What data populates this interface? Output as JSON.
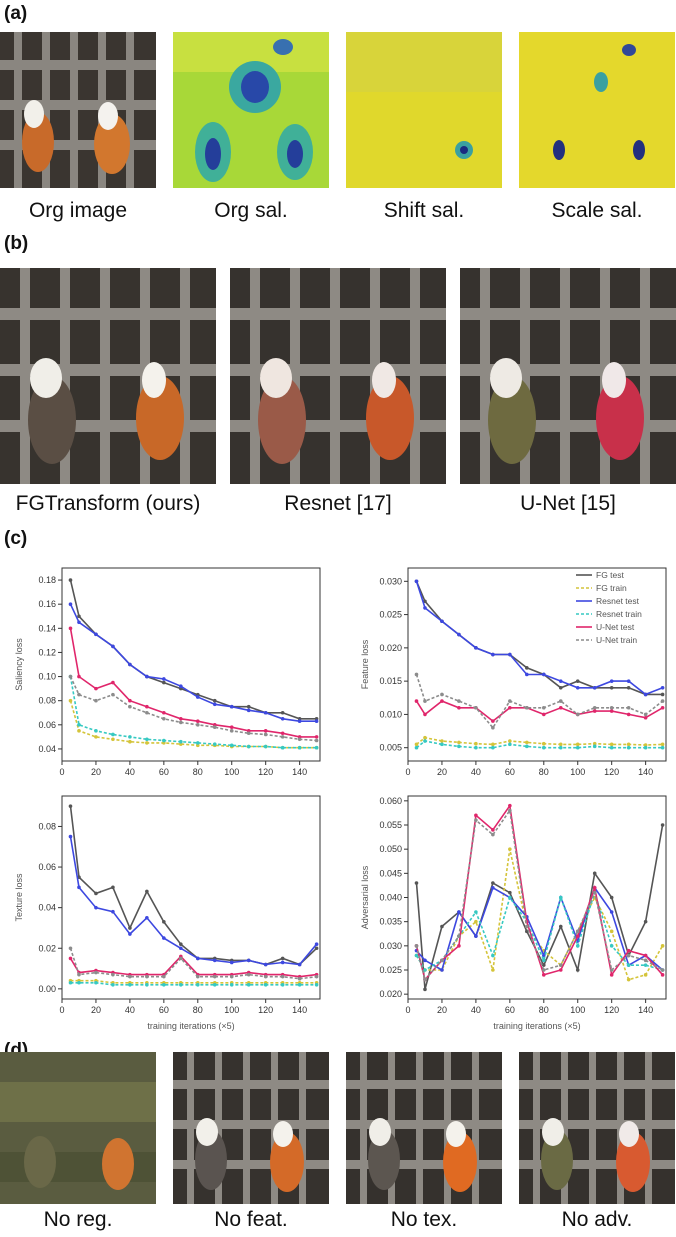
{
  "panels": {
    "a": {
      "label": "(a)",
      "captions": [
        "Org image",
        "Org sal.",
        "Shift sal.",
        "Scale sal."
      ]
    },
    "b": {
      "label": "(b)",
      "captions": [
        "FGTransform (ours)",
        "Resnet [17]",
        "U-Net [15]"
      ]
    },
    "c": {
      "label": "(c)"
    },
    "d": {
      "label": "(d)",
      "captions": [
        "No reg.",
        "No feat.",
        "No tex.",
        "No adv."
      ]
    }
  },
  "colors": {
    "fg_test": "#555555",
    "fg_train": "#d4c43a",
    "resnet_test": "#3d48e0",
    "resnet_train": "#36c9c2",
    "unet_test": "#e0266b",
    "unet_train": "#8c8c8c"
  },
  "chart_data": [
    {
      "type": "line",
      "id": "saliency",
      "ylabel": "Saliency loss",
      "xlabel": "",
      "xticks": [
        0,
        20,
        40,
        60,
        80,
        100,
        120,
        140
      ],
      "yticks": [
        "0.04",
        "0.06",
        "0.08",
        "0.10",
        "0.12",
        "0.14",
        "0.16",
        "0.18"
      ],
      "ylim": [
        0.03,
        0.19
      ],
      "xlim": [
        0,
        152
      ],
      "x": [
        5,
        10,
        20,
        30,
        40,
        50,
        60,
        70,
        80,
        90,
        100,
        110,
        120,
        130,
        140,
        150
      ],
      "series": [
        {
          "key": "fg_test",
          "values": [
            0.18,
            0.15,
            0.135,
            0.125,
            0.11,
            0.1,
            0.095,
            0.09,
            0.085,
            0.08,
            0.075,
            0.075,
            0.07,
            0.07,
            0.065,
            0.065
          ]
        },
        {
          "key": "fg_train",
          "values": [
            0.08,
            0.055,
            0.05,
            0.048,
            0.046,
            0.045,
            0.045,
            0.044,
            0.043,
            0.043,
            0.042,
            0.042,
            0.042,
            0.041,
            0.041,
            0.041
          ]
        },
        {
          "key": "resnet_test",
          "values": [
            0.16,
            0.145,
            0.135,
            0.125,
            0.11,
            0.1,
            0.098,
            0.092,
            0.083,
            0.077,
            0.075,
            0.072,
            0.07,
            0.065,
            0.063,
            0.063
          ]
        },
        {
          "key": "resnet_train",
          "values": [
            0.1,
            0.06,
            0.055,
            0.052,
            0.05,
            0.048,
            0.047,
            0.046,
            0.045,
            0.044,
            0.043,
            0.042,
            0.042,
            0.041,
            0.041,
            0.041
          ]
        },
        {
          "key": "unet_test",
          "values": [
            0.14,
            0.1,
            0.09,
            0.095,
            0.08,
            0.075,
            0.07,
            0.065,
            0.063,
            0.06,
            0.058,
            0.055,
            0.055,
            0.053,
            0.05,
            0.05
          ]
        },
        {
          "key": "unet_train",
          "values": [
            0.1,
            0.085,
            0.08,
            0.085,
            0.075,
            0.07,
            0.065,
            0.062,
            0.06,
            0.058,
            0.055,
            0.053,
            0.052,
            0.05,
            0.048,
            0.047
          ]
        }
      ]
    },
    {
      "type": "line",
      "id": "feature",
      "ylabel": "Feature loss",
      "xlabel": "",
      "xticks": [
        0,
        20,
        40,
        60,
        80,
        100,
        120,
        140
      ],
      "yticks": [
        "0.005",
        "0.010",
        "0.015",
        "0.020",
        "0.025",
        "0.030"
      ],
      "ylim": [
        0.003,
        0.032
      ],
      "xlim": [
        0,
        152
      ],
      "x": [
        5,
        10,
        20,
        30,
        40,
        50,
        60,
        70,
        80,
        90,
        100,
        110,
        120,
        130,
        140,
        150
      ],
      "legend": {
        "position": "top-right",
        "labels": [
          "FG test",
          "FG train",
          "Resnet test",
          "Resnet train",
          "U-Net test",
          "U-Net train"
        ]
      },
      "series": [
        {
          "key": "fg_test",
          "values": [
            0.03,
            0.027,
            0.024,
            0.022,
            0.02,
            0.019,
            0.019,
            0.017,
            0.016,
            0.014,
            0.015,
            0.014,
            0.014,
            0.014,
            0.013,
            0.013
          ]
        },
        {
          "key": "fg_train",
          "values": [
            0.0055,
            0.0065,
            0.006,
            0.0058,
            0.0056,
            0.0055,
            0.006,
            0.0058,
            0.0056,
            0.0055,
            0.0055,
            0.0056,
            0.0055,
            0.0055,
            0.0054,
            0.0055
          ]
        },
        {
          "key": "resnet_test",
          "values": [
            0.03,
            0.026,
            0.024,
            0.022,
            0.02,
            0.019,
            0.019,
            0.016,
            0.016,
            0.015,
            0.014,
            0.014,
            0.015,
            0.015,
            0.013,
            0.014
          ]
        },
        {
          "key": "resnet_train",
          "values": [
            0.005,
            0.006,
            0.0055,
            0.0052,
            0.005,
            0.005,
            0.0055,
            0.0052,
            0.005,
            0.005,
            0.005,
            0.0052,
            0.005,
            0.005,
            0.005,
            0.005
          ]
        },
        {
          "key": "unet_test",
          "values": [
            0.012,
            0.01,
            0.012,
            0.011,
            0.011,
            0.009,
            0.011,
            0.011,
            0.01,
            0.011,
            0.01,
            0.0105,
            0.0105,
            0.01,
            0.0095,
            0.011
          ]
        },
        {
          "key": "unet_train",
          "values": [
            0.016,
            0.012,
            0.013,
            0.012,
            0.011,
            0.008,
            0.012,
            0.011,
            0.011,
            0.012,
            0.01,
            0.011,
            0.011,
            0.011,
            0.01,
            0.012
          ]
        }
      ]
    },
    {
      "type": "line",
      "id": "texture",
      "ylabel": "Texture loss",
      "xlabel": "training iterations (×5)",
      "xticks": [
        0,
        20,
        40,
        60,
        80,
        100,
        120,
        140
      ],
      "yticks": [
        "0.00",
        "0.02",
        "0.04",
        "0.06",
        "0.08"
      ],
      "ylim": [
        -0.005,
        0.095
      ],
      "xlim": [
        0,
        152
      ],
      "x": [
        5,
        10,
        20,
        30,
        40,
        50,
        60,
        70,
        80,
        90,
        100,
        110,
        120,
        130,
        140,
        150
      ],
      "series": [
        {
          "key": "fg_test",
          "values": [
            0.09,
            0.055,
            0.047,
            0.05,
            0.03,
            0.048,
            0.033,
            0.022,
            0.015,
            0.015,
            0.014,
            0.014,
            0.012,
            0.015,
            0.012,
            0.02
          ]
        },
        {
          "key": "fg_train",
          "values": [
            0.004,
            0.004,
            0.004,
            0.003,
            0.003,
            0.003,
            0.003,
            0.003,
            0.003,
            0.003,
            0.003,
            0.003,
            0.003,
            0.003,
            0.003,
            0.003
          ]
        },
        {
          "key": "resnet_test",
          "values": [
            0.075,
            0.05,
            0.04,
            0.038,
            0.027,
            0.035,
            0.025,
            0.02,
            0.015,
            0.014,
            0.013,
            0.014,
            0.012,
            0.013,
            0.012,
            0.022
          ]
        },
        {
          "key": "resnet_train",
          "values": [
            0.003,
            0.003,
            0.003,
            0.002,
            0.002,
            0.002,
            0.002,
            0.002,
            0.002,
            0.002,
            0.002,
            0.002,
            0.002,
            0.002,
            0.002,
            0.002
          ]
        },
        {
          "key": "unet_test",
          "values": [
            0.015,
            0.008,
            0.009,
            0.008,
            0.007,
            0.007,
            0.007,
            0.016,
            0.007,
            0.007,
            0.007,
            0.008,
            0.007,
            0.007,
            0.006,
            0.007
          ]
        },
        {
          "key": "unet_train",
          "values": [
            0.02,
            0.007,
            0.008,
            0.007,
            0.006,
            0.006,
            0.006,
            0.015,
            0.006,
            0.006,
            0.006,
            0.007,
            0.006,
            0.006,
            0.005,
            0.006
          ]
        }
      ]
    },
    {
      "type": "line",
      "id": "adversarial",
      "ylabel": "Adversarial loss",
      "xlabel": "training iterations (×5)",
      "xticks": [
        0,
        20,
        40,
        60,
        80,
        100,
        120,
        140
      ],
      "yticks": [
        "0.020",
        "0.025",
        "0.030",
        "0.035",
        "0.040",
        "0.045",
        "0.050",
        "0.055",
        "0.060"
      ],
      "ylim": [
        0.019,
        0.061
      ],
      "xlim": [
        0,
        152
      ],
      "x": [
        5,
        10,
        20,
        30,
        40,
        50,
        60,
        70,
        80,
        90,
        100,
        110,
        120,
        130,
        140,
        150
      ],
      "series": [
        {
          "key": "fg_test",
          "values": [
            0.043,
            0.021,
            0.034,
            0.037,
            0.032,
            0.043,
            0.041,
            0.033,
            0.026,
            0.034,
            0.025,
            0.045,
            0.04,
            0.028,
            0.035,
            0.055
          ]
        },
        {
          "key": "fg_train",
          "values": [
            0.028,
            0.025,
            0.025,
            0.032,
            0.035,
            0.025,
            0.05,
            0.034,
            0.029,
            0.026,
            0.033,
            0.04,
            0.033,
            0.023,
            0.024,
            0.03
          ]
        },
        {
          "key": "resnet_test",
          "values": [
            0.029,
            0.027,
            0.025,
            0.037,
            0.032,
            0.042,
            0.04,
            0.036,
            0.028,
            0.04,
            0.031,
            0.042,
            0.037,
            0.026,
            0.028,
            0.025
          ]
        },
        {
          "key": "resnet_train",
          "values": [
            0.028,
            0.025,
            0.027,
            0.032,
            0.037,
            0.028,
            0.04,
            0.035,
            0.027,
            0.04,
            0.03,
            0.041,
            0.03,
            0.026,
            0.026,
            0.025
          ]
        },
        {
          "key": "unet_test",
          "values": [
            0.03,
            0.023,
            0.027,
            0.03,
            0.057,
            0.054,
            0.059,
            0.035,
            0.024,
            0.025,
            0.032,
            0.042,
            0.024,
            0.029,
            0.028,
            0.024
          ]
        },
        {
          "key": "unet_train",
          "values": [
            0.03,
            0.023,
            0.027,
            0.032,
            0.056,
            0.053,
            0.058,
            0.034,
            0.025,
            0.026,
            0.033,
            0.041,
            0.025,
            0.028,
            0.027,
            0.025
          ]
        }
      ]
    }
  ]
}
